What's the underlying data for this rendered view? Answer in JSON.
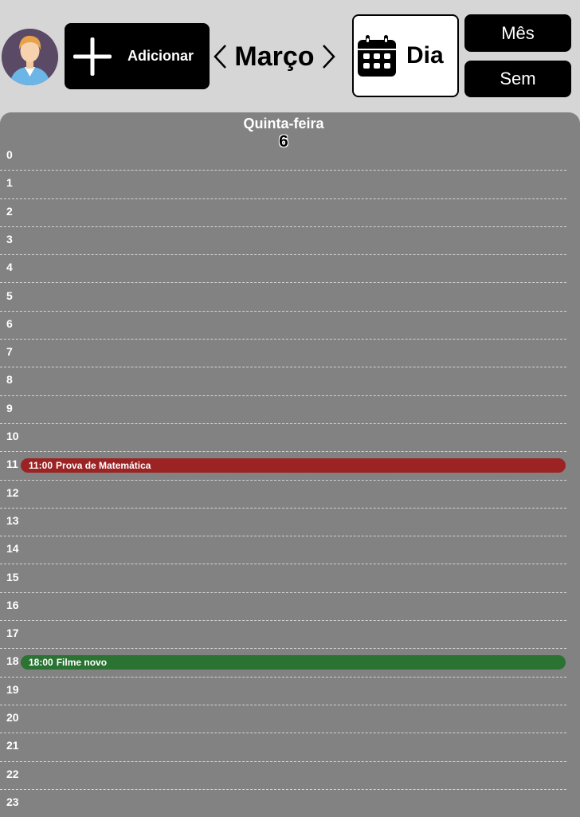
{
  "header": {
    "add_label": "Adicionar",
    "month": "Março",
    "view_day_label": "Dia",
    "view_month_label": "Mês",
    "view_week_label": "Sem"
  },
  "day": {
    "weekday": "Quinta-feira",
    "number": "6"
  },
  "hours": [
    "0",
    "1",
    "2",
    "3",
    "4",
    "5",
    "6",
    "7",
    "8",
    "9",
    "10",
    "11",
    "12",
    "13",
    "14",
    "15",
    "16",
    "17",
    "18",
    "19",
    "20",
    "21",
    "22",
    "23"
  ],
  "events": [
    {
      "time": "11:00",
      "title": "Prova de Matemática",
      "hour": 11,
      "color": "#9b2323"
    },
    {
      "time": "18:00",
      "title": "Filme novo",
      "hour": 18,
      "color": "#2a7333"
    }
  ],
  "colors": {
    "topbar_bg": "#d6d6d6",
    "panel_bg": "#828282",
    "button_dark": "#000000"
  }
}
